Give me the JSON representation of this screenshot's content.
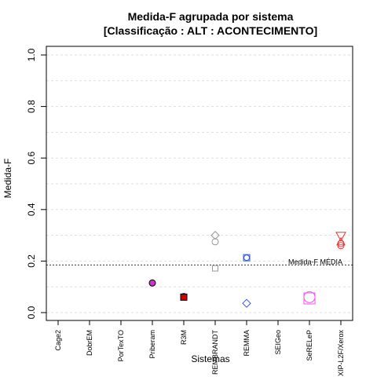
{
  "chart_data": {
    "type": "scatter",
    "title_line1": "Medida-F agrupada por sistema",
    "title_line2": "[Classificação : ALT : ACONTECIMENTO]",
    "xlabel": "Sistemas",
    "ylabel": "Medida-F",
    "ylim": [
      0,
      1
    ],
    "yticks": [
      "0.0",
      "0.2",
      "0.4",
      "0.6",
      "0.8",
      "1.0"
    ],
    "grid": true,
    "categories": [
      "Cage2",
      "DobrEM",
      "PorTexTO",
      "Priberam",
      "R3M",
      "REMBRANDT",
      "REMMA",
      "SEIGeo",
      "SeRELeP",
      "XIP-L2F/Xerox"
    ],
    "points": [
      {
        "cat": "Priberam",
        "y": 0.115,
        "shape": "circle",
        "color": "#CC33CC",
        "filled": true,
        "size": 4
      },
      {
        "cat": "R3M",
        "y": 0.062,
        "shape": "circle",
        "color": "#CC0000",
        "filled": true,
        "size": 4
      },
      {
        "cat": "R3M",
        "y": 0.06,
        "shape": "square",
        "color": "#CC0000",
        "filled": true,
        "size": 4
      },
      {
        "cat": "REMBRANDT",
        "y": 0.3,
        "shape": "diamond",
        "color": "#999999",
        "filled": false,
        "size": 5
      },
      {
        "cat": "REMBRANDT",
        "y": 0.275,
        "shape": "circle",
        "color": "#999999",
        "filled": false,
        "size": 4
      },
      {
        "cat": "REMBRANDT",
        "y": 0.172,
        "shape": "square",
        "color": "#999999",
        "filled": false,
        "size": 3.5
      },
      {
        "cat": "REMMA",
        "y": 0.213,
        "shape": "square",
        "color": "#3355DD",
        "filled": false,
        "size": 4
      },
      {
        "cat": "REMMA",
        "y": 0.213,
        "shape": "circle",
        "color": "#3355DD",
        "filled": false,
        "size": 3.5
      },
      {
        "cat": "REMMA",
        "y": 0.036,
        "shape": "diamond",
        "color": "#3355DD",
        "filled": false,
        "size": 5
      },
      {
        "cat": "SeRELeP",
        "y": 0.06,
        "shape": "circle",
        "color": "#EE55EE",
        "filled": false,
        "size": 7
      },
      {
        "cat": "SeRELeP",
        "y": 0.055,
        "shape": "square",
        "color": "#EE55EE",
        "filled": false,
        "size": 7
      },
      {
        "cat": "XIP-L2F/Xerox",
        "y": 0.297,
        "shape": "triangle-down",
        "color": "#EE3333",
        "filled": false,
        "size": 6
      },
      {
        "cat": "XIP-L2F/Xerox",
        "y": 0.268,
        "shape": "circle",
        "color": "#EE3333",
        "filled": false,
        "size": 4
      },
      {
        "cat": "XIP-L2F/Xerox",
        "y": 0.26,
        "shape": "circle",
        "color": "#EE3333",
        "filled": false,
        "size": 4
      },
      {
        "cat": "XIP-L2F/Xerox",
        "y": 0.275,
        "shape": "triangle-up",
        "color": "#EE3333",
        "filled": false,
        "size": 5
      }
    ],
    "mean_line": {
      "y": 0.185,
      "label": "Medida-F MÉDIA"
    }
  }
}
